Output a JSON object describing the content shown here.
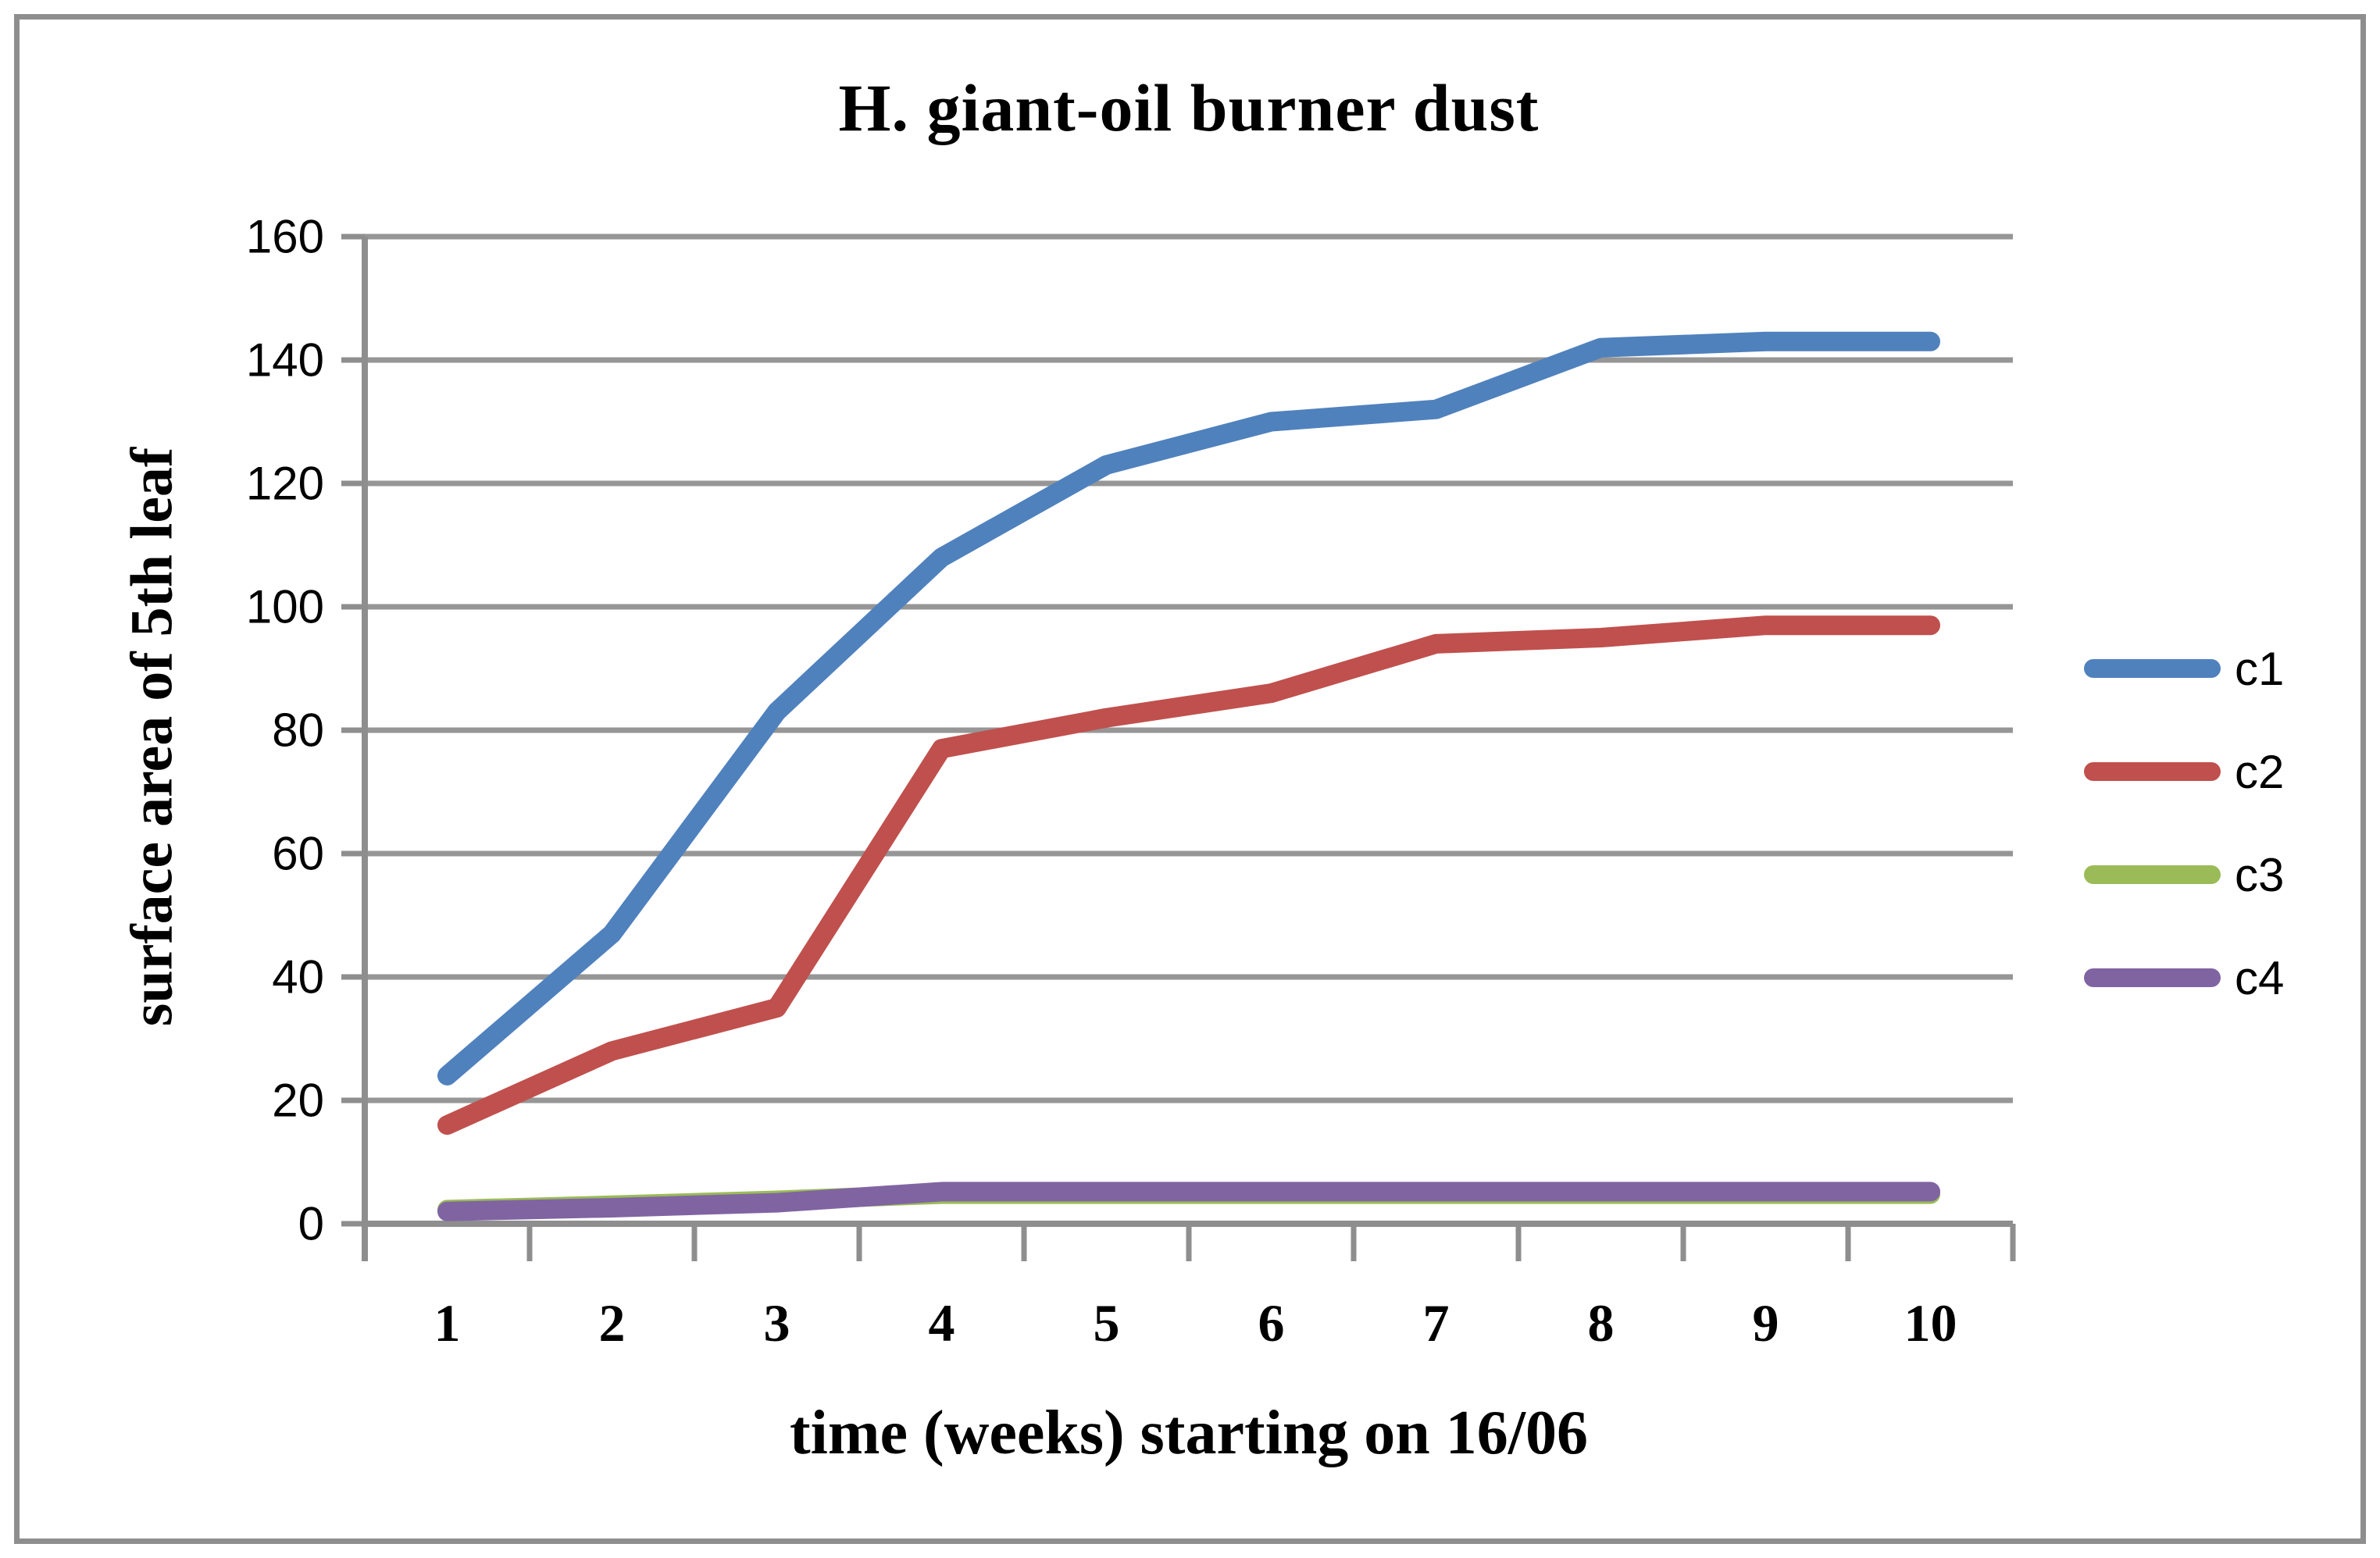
{
  "figure": {
    "background": "#FFFFFF",
    "border_color": "#8E8E8E"
  },
  "chart_data": {
    "type": "line",
    "title": "H. giant-oil burner dust",
    "xlabel": "time (weeks) starting on 16/06",
    "ylabel": "surface area of 5th leaf",
    "x": [
      1,
      2,
      3,
      4,
      5,
      6,
      7,
      8,
      9,
      10
    ],
    "x_tick_labels": [
      "1",
      "2",
      "3",
      "4",
      "5",
      "6",
      "7",
      "8",
      "9",
      "10"
    ],
    "y_ticks": [
      0,
      20,
      40,
      60,
      80,
      100,
      120,
      140,
      160
    ],
    "y_tick_labels": [
      "0",
      "20",
      "40",
      "60",
      "80",
      "100",
      "120",
      "140",
      "160"
    ],
    "ylim": [
      0,
      160
    ],
    "grid": "horizontal",
    "legend_position": "right",
    "axis_color": "#8E8E8E",
    "gridline_color": "#969696",
    "series": [
      {
        "name": "c1",
        "color": "#4F81BD",
        "values": [
          24,
          47,
          83,
          108,
          123,
          130,
          132,
          142,
          143,
          143
        ]
      },
      {
        "name": "c2",
        "color": "#C0504D",
        "values": [
          16,
          28,
          35,
          77,
          82,
          86,
          94,
          95,
          97,
          97
        ]
      },
      {
        "name": "c3",
        "color": "#9BBB59",
        "values": [
          2.3,
          3.0,
          3.8,
          4.8,
          4.8,
          4.8,
          4.8,
          4.8,
          4.8,
          4.8
        ]
      },
      {
        "name": "c4",
        "color": "#8064A2",
        "values": [
          2.0,
          2.6,
          3.4,
          5.2,
          5.2,
          5.2,
          5.2,
          5.2,
          5.2,
          5.2
        ]
      }
    ]
  }
}
